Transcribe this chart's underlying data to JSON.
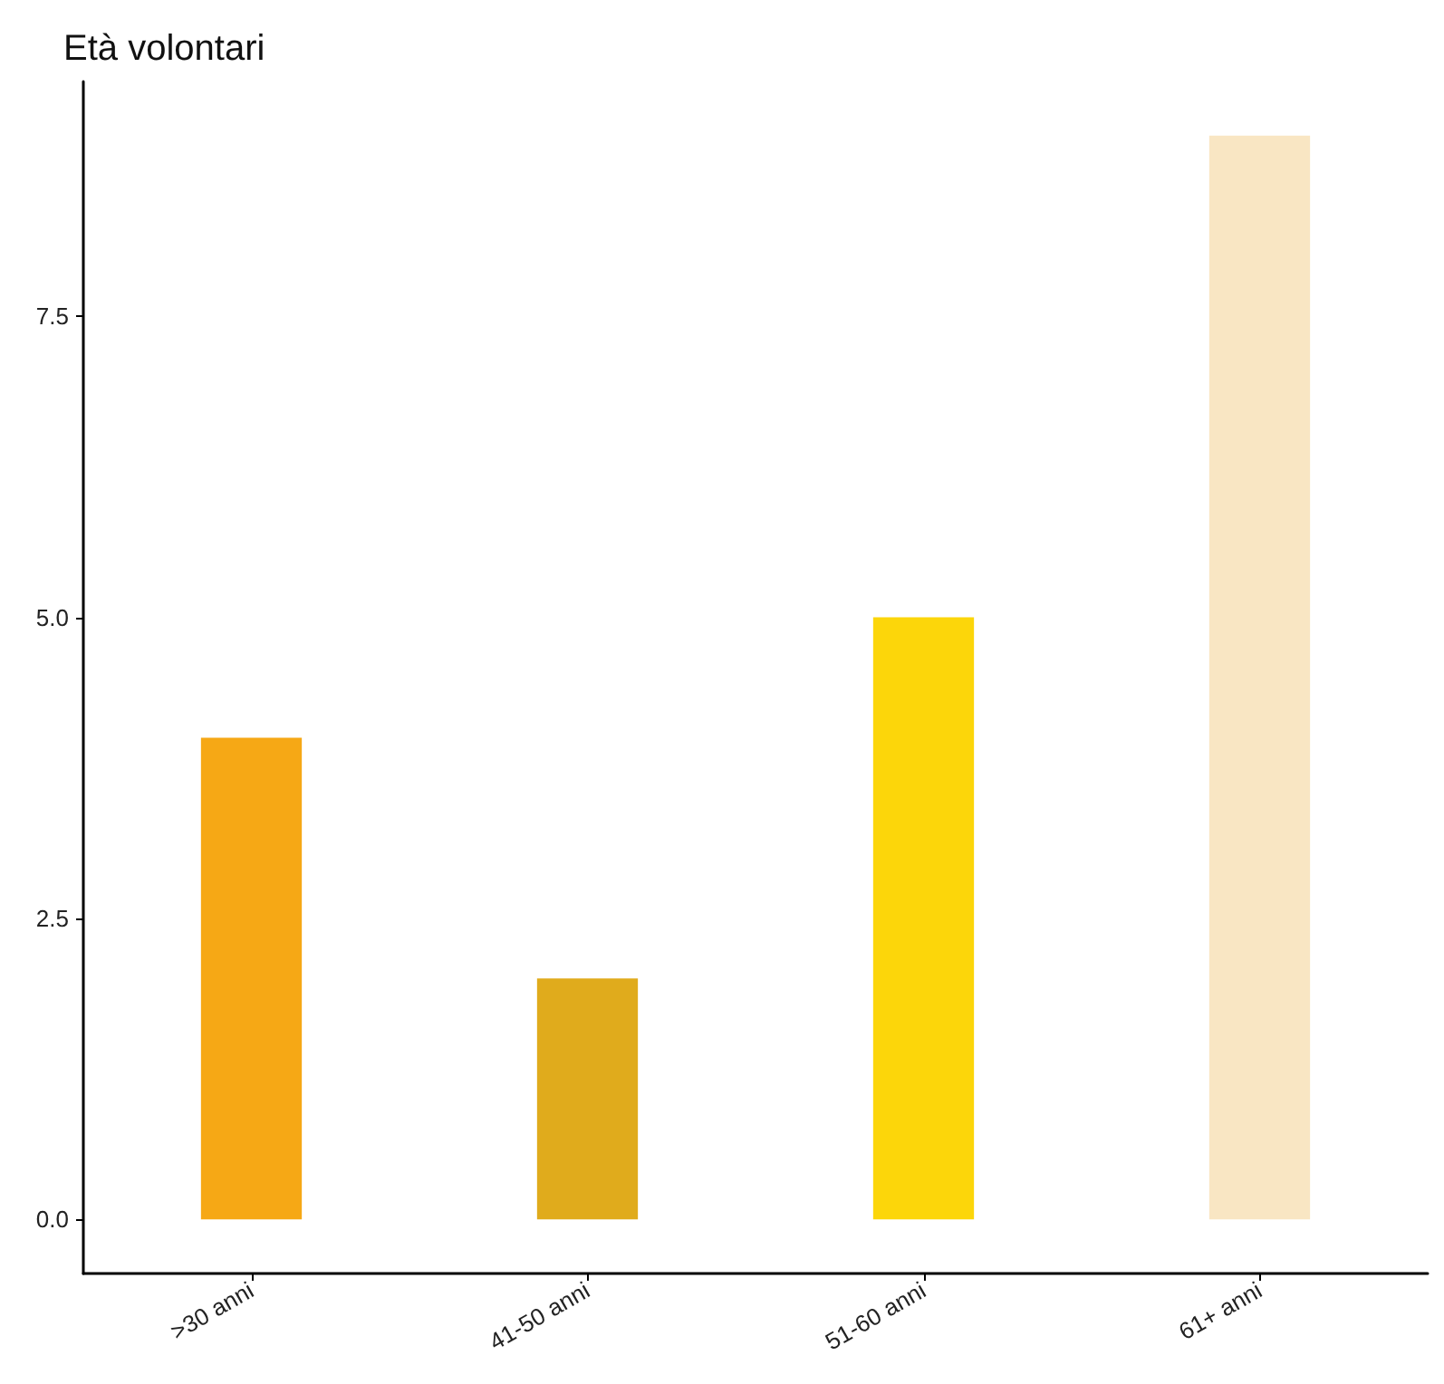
{
  "chart_data": {
    "type": "bar",
    "title": "Età volontari",
    "categories": [
      ">30 anni",
      "41-50 anni",
      "51-60 anni",
      "61+ anni"
    ],
    "values": [
      4,
      2,
      5,
      9
    ],
    "colors": [
      "#f6a815",
      "#e0ab1c",
      "#fcd60a",
      "#f9e6c3"
    ],
    "ylim": [
      -0.45,
      9.45
    ],
    "yticks": [
      {
        "value": 0,
        "label": "0.0"
      },
      2.5,
      {
        "value": 5,
        "label": "5.0"
      },
      7.5
    ],
    "grid": false
  }
}
